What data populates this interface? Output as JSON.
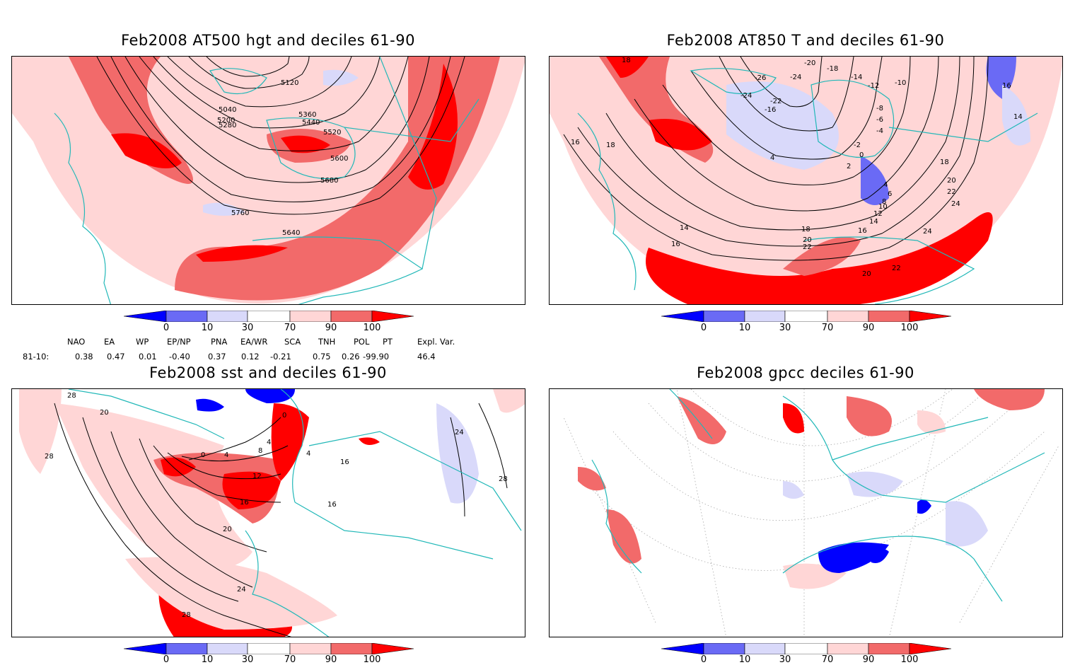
{
  "panels": [
    {
      "title": "Feb2008 AT500 hgt and deciles 61-90",
      "contour_labels": [
        "5120",
        "5040",
        "5200",
        "5280",
        "5360",
        "5440",
        "5520",
        "5600",
        "5680",
        "5760",
        "5640"
      ]
    },
    {
      "title": "Feb2008 AT850 T and deciles 61-90",
      "contour_labels": [
        "18",
        "-20",
        "-18",
        "-26",
        "-24",
        "-24",
        "-22",
        "-16",
        "-14",
        "-12",
        "-10",
        "-8",
        "-6",
        "-4",
        "-2",
        "0",
        "2",
        "4",
        "16",
        "18",
        "14",
        "16",
        "18",
        "20",
        "22",
        "24",
        "14",
        "16",
        "4",
        "6",
        "8",
        "10",
        "12",
        "14",
        "16",
        "18",
        "20",
        "22",
        "20",
        "22",
        "24"
      ]
    },
    {
      "title": "Feb2008 sst and deciles 61-90",
      "contour_labels": [
        "28",
        "20",
        "28",
        "0",
        "4",
        "8",
        "12",
        "16",
        "20",
        "24",
        "28",
        "24",
        "28",
        "4",
        "4",
        "16",
        "16",
        "0"
      ]
    },
    {
      "title": "Feb2008 gpcc deciles 61-90",
      "contour_labels": []
    }
  ],
  "colorbar": {
    "labels": [
      "0",
      "10",
      "30",
      "70",
      "90",
      "100"
    ],
    "colors": [
      "#0000ff",
      "#6a6af5",
      "#d9d9fa",
      "#ffffff",
      "#ffd6d6",
      "#f26a6a",
      "#ff0000"
    ]
  },
  "indices": {
    "row_label": "81-10:",
    "headers": [
      "NAO",
      "EA",
      "WP",
      "EP/NP",
      "PNA",
      "EA/WR",
      "SCA",
      "TNH",
      "POL",
      "PT",
      "Expl. Var."
    ],
    "values": [
      "0.38",
      "0.47",
      "0.01",
      "-0.40",
      "0.37",
      "0.12",
      "-0.21",
      "0.75",
      "0.26",
      "-99.90",
      "46.4"
    ]
  },
  "colors": {
    "coast": "#22b8b8",
    "contour": "#000000",
    "above": "#ff0000",
    "mid_above": "#f26a6a",
    "light_above": "#ffd6d6",
    "light_below": "#d9d9fa",
    "below": "#0000ff"
  }
}
